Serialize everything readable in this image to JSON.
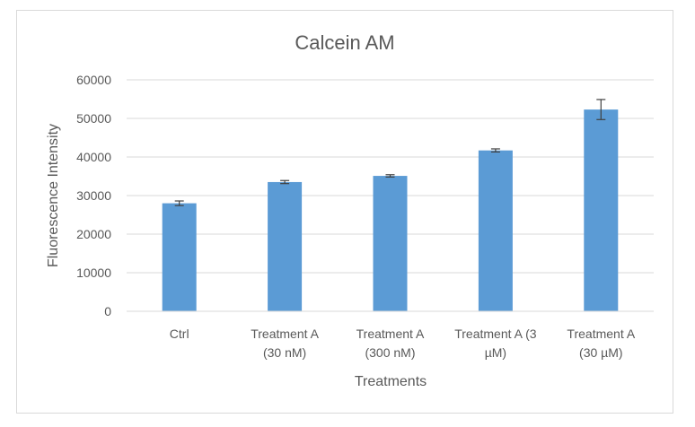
{
  "chart_data": {
    "type": "bar",
    "title": "Calcein AM",
    "xlabel": "Treatments",
    "ylabel": "Fluorescence Intensity",
    "categories": [
      [
        "Ctrl"
      ],
      [
        "Treatment A",
        "(30 nM)"
      ],
      [
        "Treatment A",
        "(300 nM)"
      ],
      [
        "Treatment A (3",
        "µM)"
      ],
      [
        "Treatment A",
        "(30 µM)"
      ]
    ],
    "values": [
      28000,
      33500,
      35100,
      41700,
      52300
    ],
    "error": [
      600,
      400,
      300,
      400,
      2600
    ],
    "ylim": [
      0,
      60000
    ],
    "yticks": [
      "0",
      "10000",
      "20000",
      "30000",
      "40000",
      "50000",
      "60000"
    ],
    "grid": true,
    "legend": "none",
    "colors": {
      "bar": "#5b9bd5",
      "grid": "#d9d9d9",
      "text": "#595959",
      "error": "#404040"
    }
  }
}
